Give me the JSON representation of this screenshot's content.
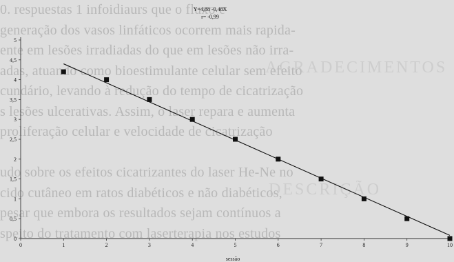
{
  "background_text": [
    "0. respuestas 1 infoidiaurs que o fluxo e",
    "generação dos vasos linfáticos ocorrem mais rapida-",
    "ente em lesões irradiadas do que em lesões não irra-",
    "adas, atuando como bioestimulante celular sem efeito",
    "cundário, levando à redução do tempo de cicatrização",
    "s lesões ulcerativas. Assim, o laser repara e aumenta",
    "proliferação celular e velocidade de cicatrização",
    "",
    "udo sobre os efeitos cicatrizantes do laser He-Ne no",
    "cido cutâneo em ratos diabéticos e não diabéticos,",
    "pesar que embora os resultados sejam contínuos a",
    "speito do tratamento com laserterapia nos estudos"
  ],
  "watermark_texts": [
    "AGRADECIMENTOS",
    "DESCRIÇÃO"
  ],
  "colors": {
    "background": "#dedede",
    "points": "#111111",
    "line": "#111111",
    "axis": "#333333",
    "bg_text": "#9a9a9a"
  },
  "chart_data": {
    "type": "scatter",
    "title": "",
    "equation": "Y=4,88 -0,48X",
    "r_value": "r= -0,99",
    "xlabel": "sessão",
    "ylabel": "",
    "xlim": [
      0,
      10
    ],
    "ylim": [
      0,
      5
    ],
    "x_ticks": [
      0,
      1,
      2,
      3,
      4,
      5,
      6,
      7,
      8,
      9,
      10
    ],
    "y_ticks": [
      "0",
      "0,5",
      "1",
      "1,5",
      "2",
      "2,5",
      "3",
      "3,5",
      "4",
      "4,5",
      "5"
    ],
    "points": [
      {
        "x": 1,
        "y": 4.2
      },
      {
        "x": 2,
        "y": 4.0
      },
      {
        "x": 3,
        "y": 3.5
      },
      {
        "x": 4,
        "y": 3.0
      },
      {
        "x": 5,
        "y": 2.5
      },
      {
        "x": 6,
        "y": 2.0
      },
      {
        "x": 7,
        "y": 1.5
      },
      {
        "x": 8,
        "y": 1.0
      },
      {
        "x": 9,
        "y": 0.5
      },
      {
        "x": 10,
        "y": 0.0
      }
    ],
    "regression": {
      "intercept": 4.88,
      "slope": -0.48,
      "x_start": 1,
      "x_end": 10
    }
  }
}
